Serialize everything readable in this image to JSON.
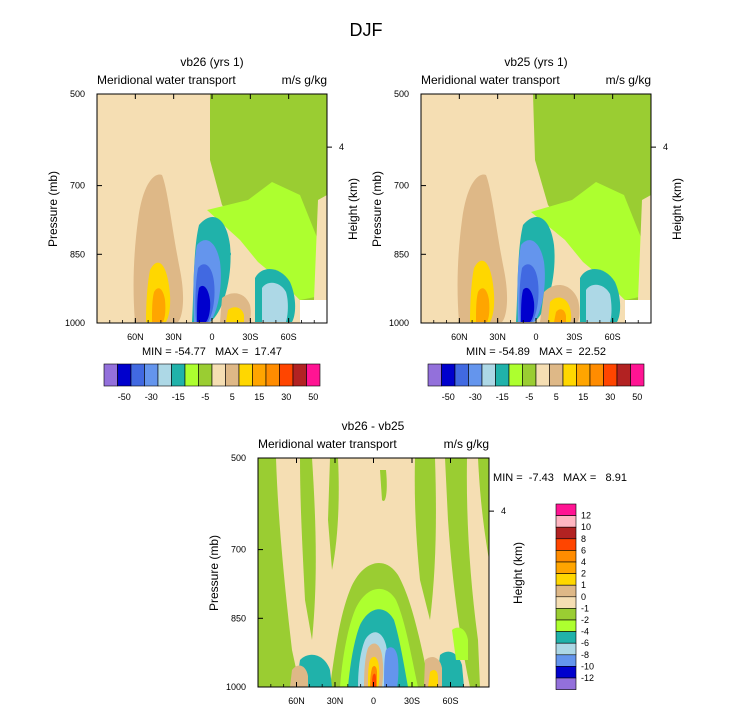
{
  "page": {
    "title": "DJF"
  },
  "colors": {
    "n50": "#9370db",
    "n40": "#0000cd",
    "n30": "#4169e1",
    "n20": "#6495ed",
    "n15": "#add8e6",
    "n10": "#20b2aa",
    "n5": "#adff2f",
    "n0": "#9acd32",
    "p0": "#f5deb3",
    "p5": "#deb887",
    "p10": "#ffd700",
    "p15": "#ffa500",
    "p20": "#ff8c00",
    "p30": "#ff4500",
    "p40": "#b22222",
    "p50": "#ffb6c1",
    "p60": "#ff1493"
  },
  "panels": [
    {
      "title": "vb26 (yrs 1)",
      "left_label": "Meridional water transport",
      "right_label": "m/s g/kg",
      "ylabel": "Pressure (mb)",
      "right_axis_label": "Height (km)",
      "stats": "MIN = -54.77   MAX =  17.47"
    },
    {
      "title": "vb25 (yrs 1)",
      "left_label": "Meridional water transport",
      "right_label": "m/s g/kg",
      "ylabel": "Pressure (mb)",
      "right_axis_label": "Height (km)",
      "stats": "MIN = -54.89   MAX =  22.52"
    },
    {
      "title": "vb26 - vb25",
      "left_label": "Meridional water transport",
      "right_label": "m/s g/kg",
      "ylabel": "Pressure (mb)",
      "right_axis_label": "Height (km)",
      "stats": "MIN =  -7.43   MAX =   8.91"
    }
  ],
  "chart_data": [
    {
      "type": "heatmap",
      "title": "vb26 (yrs 1)",
      "xlabel": "",
      "ylabel": "Pressure (mb)",
      "x_ticks": [
        "60N",
        "30N",
        "0",
        "30S",
        "60S"
      ],
      "x_tick_values": [
        60,
        30,
        0,
        -30,
        -60
      ],
      "xlim": [
        90,
        -90
      ],
      "y_ticks": [
        "500",
        "700",
        "850",
        "1000"
      ],
      "y_tick_values": [
        500,
        700,
        850,
        1000
      ],
      "ylim": [
        500,
        1000
      ],
      "right_ticks": [
        "4"
      ],
      "right_tick_pressure": [
        616
      ],
      "min": -54.77,
      "max": 17.47
    },
    {
      "type": "heatmap",
      "title": "vb25 (yrs 1)",
      "xlabel": "",
      "ylabel": "Pressure (mb)",
      "x_ticks": [
        "60N",
        "30N",
        "0",
        "30S",
        "60S"
      ],
      "x_tick_values": [
        60,
        30,
        0,
        -30,
        -60
      ],
      "xlim": [
        90,
        -90
      ],
      "y_ticks": [
        "500",
        "700",
        "850",
        "1000"
      ],
      "y_tick_values": [
        500,
        700,
        850,
        1000
      ],
      "ylim": [
        500,
        1000
      ],
      "right_ticks": [
        "4"
      ],
      "right_tick_pressure": [
        616
      ],
      "min": -54.89,
      "max": 22.52
    },
    {
      "type": "heatmap",
      "title": "vb26 - vb25",
      "xlabel": "",
      "ylabel": "Pressure (mb)",
      "x_ticks": [
        "60N",
        "30N",
        "0",
        "30S",
        "60S"
      ],
      "x_tick_values": [
        60,
        30,
        0,
        -30,
        -60
      ],
      "xlim": [
        90,
        -90
      ],
      "y_ticks": [
        "500",
        "700",
        "850",
        "1000"
      ],
      "y_tick_values": [
        500,
        700,
        850,
        1000
      ],
      "ylim": [
        500,
        1000
      ],
      "right_ticks": [
        "4"
      ],
      "right_tick_pressure": [
        616
      ],
      "min": -7.43,
      "max": 8.91
    }
  ],
  "colorbar_top": {
    "labels": [
      "-50",
      "-30",
      "-15",
      "-5",
      "5",
      "15",
      "30",
      "50"
    ],
    "label_after_box": [
      1,
      3,
      5,
      7,
      9,
      11,
      13,
      15
    ],
    "levels": [
      -50,
      -40,
      -30,
      -20,
      -15,
      -10,
      -5,
      0,
      5,
      10,
      15,
      20,
      30,
      40,
      50
    ],
    "color_keys": [
      "n50",
      "n40",
      "n30",
      "n20",
      "n15",
      "n10",
      "n5",
      "n0",
      "p0",
      "p5",
      "p10",
      "p15",
      "p20",
      "p30",
      "p40",
      "p60"
    ]
  },
  "colorbar_diff": {
    "labels": [
      "12",
      "10",
      "8",
      "6",
      "4",
      "2",
      "1",
      "0",
      "-1",
      "-2",
      "-4",
      "-6",
      "-8",
      "-10",
      "-12"
    ],
    "color_keys": [
      "p60",
      "p50",
      "p40",
      "p30",
      "p20",
      "p15",
      "p10",
      "p5",
      "p0",
      "n0",
      "n5",
      "n10",
      "n15",
      "n20",
      "n40",
      "n50"
    ]
  }
}
